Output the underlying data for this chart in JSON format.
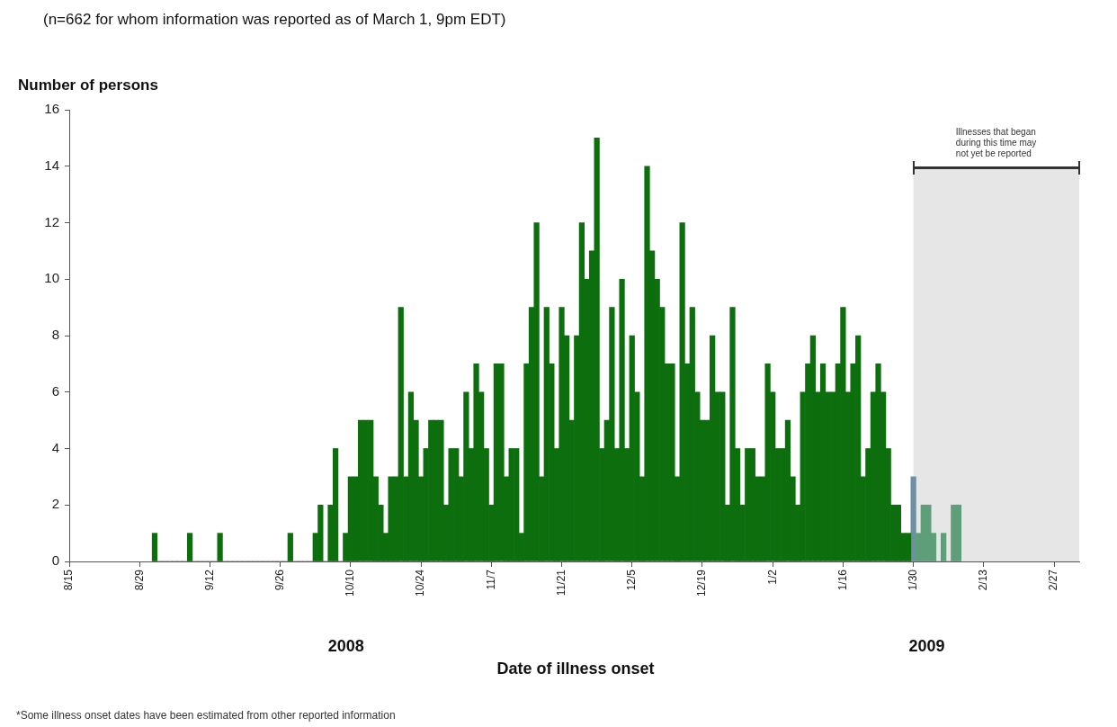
{
  "chart_data": {
    "type": "bar",
    "title": "(n=662 for whom information was reported as of March 1, 9pm EDT)",
    "ylabel": "Number of persons",
    "xlabel": "Date of illness onset",
    "series": [
      {
        "color": "#0d6e0d",
        "x": [
          "2008-09-01",
          "2008-09-02",
          "2008-09-03",
          "2008-09-04",
          "2008-09-05",
          "2008-09-06",
          "2008-09-07",
          "2008-09-08",
          "2008-09-09",
          "2008-09-10",
          "2008-09-11",
          "2008-09-12",
          "2008-09-13",
          "2008-09-14",
          "2008-09-15",
          "2008-09-16",
          "2008-09-17",
          "2008-09-18",
          "2008-09-19",
          "2008-09-20",
          "2008-09-21",
          "2008-09-22",
          "2008-09-23",
          "2008-09-24",
          "2008-09-25",
          "2008-09-26",
          "2008-09-27",
          "2008-09-28",
          "2008-09-29",
          "2008-09-30",
          "2008-10-01",
          "2008-10-02",
          "2008-10-03",
          "2008-10-04",
          "2008-10-05",
          "2008-10-06",
          "2008-10-07",
          "2008-10-08",
          "2008-10-09",
          "2008-10-10",
          "2008-10-11",
          "2008-10-12",
          "2008-10-13",
          "2008-10-14",
          "2008-10-15",
          "2008-10-16",
          "2008-10-17",
          "2008-10-18",
          "2008-10-19",
          "2008-10-20",
          "2008-10-21",
          "2008-10-22",
          "2008-10-23",
          "2008-10-24",
          "2008-10-25",
          "2008-10-26",
          "2008-10-27",
          "2008-10-28",
          "2008-10-29",
          "2008-10-30",
          "2008-10-31",
          "2008-11-01",
          "2008-11-02",
          "2008-11-03",
          "2008-11-04",
          "2008-11-05",
          "2008-11-06",
          "2008-11-07",
          "2008-11-08",
          "2008-11-09",
          "2008-11-10",
          "2008-11-11",
          "2008-11-12",
          "2008-11-13",
          "2008-11-14",
          "2008-11-15",
          "2008-11-16",
          "2008-11-17",
          "2008-11-18",
          "2008-11-19",
          "2008-11-20",
          "2008-11-21",
          "2008-11-22",
          "2008-11-23",
          "2008-11-24",
          "2008-11-25",
          "2008-11-26",
          "2008-11-27",
          "2008-11-28",
          "2008-11-29",
          "2008-11-30",
          "2008-12-01",
          "2008-12-02",
          "2008-12-03",
          "2008-12-04",
          "2008-12-05",
          "2008-12-06",
          "2008-12-07",
          "2008-12-08",
          "2008-12-09",
          "2008-12-10",
          "2008-12-11",
          "2008-12-12",
          "2008-12-13",
          "2008-12-14",
          "2008-12-15",
          "2008-12-16",
          "2008-12-17",
          "2008-12-18",
          "2008-12-19",
          "2008-12-20",
          "2008-12-21",
          "2008-12-22",
          "2008-12-23",
          "2008-12-24",
          "2008-12-25",
          "2008-12-26",
          "2008-12-27",
          "2008-12-28",
          "2008-12-29",
          "2008-12-30",
          "2008-12-31",
          "2009-01-01",
          "2009-01-02",
          "2009-01-03",
          "2009-01-04",
          "2009-01-05",
          "2009-01-06",
          "2009-01-07",
          "2009-01-08",
          "2009-01-09",
          "2009-01-10",
          "2009-01-11",
          "2009-01-12",
          "2009-01-13",
          "2009-01-14",
          "2009-01-15",
          "2009-01-16",
          "2009-01-17",
          "2009-01-18",
          "2009-01-19",
          "2009-01-20",
          "2009-01-21",
          "2009-01-22",
          "2009-01-23",
          "2009-01-24",
          "2009-01-25",
          "2009-01-26",
          "2009-01-27",
          "2009-01-28",
          "2009-01-29"
        ],
        "values": [
          1,
          0,
          0,
          0,
          0,
          0,
          0,
          1,
          0,
          0,
          0,
          0,
          0,
          1,
          0,
          0,
          0,
          0,
          0,
          0,
          0,
          0,
          0,
          0,
          0,
          0,
          0,
          1,
          0,
          0,
          0,
          0,
          1,
          2,
          0,
          2,
          4,
          0,
          1,
          3,
          3,
          5,
          5,
          5,
          3,
          2,
          1,
          3,
          3,
          9,
          3,
          6,
          5,
          3,
          4,
          5,
          5,
          5,
          2,
          4,
          4,
          3,
          6,
          4,
          7,
          6,
          4,
          2,
          7,
          7,
          3,
          4,
          4,
          1,
          7,
          9,
          12,
          3,
          9,
          7,
          4,
          9,
          8,
          5,
          8,
          12,
          10,
          11,
          15,
          4,
          5,
          9,
          4,
          10,
          4,
          8,
          6,
          3,
          14,
          11,
          10,
          9,
          7,
          7,
          3,
          12,
          7,
          9,
          6,
          5,
          5,
          8,
          6,
          6,
          2,
          9,
          4,
          2,
          4,
          4,
          3,
          3,
          7,
          6,
          4,
          4,
          5,
          3,
          2,
          6,
          7,
          8,
          6,
          7,
          6,
          6,
          7,
          9,
          6,
          7,
          8,
          3,
          4,
          6,
          7,
          6,
          4,
          2,
          2,
          1,
          1
        ]
      },
      {
        "colors": [
          "#6f8fa5",
          "#5e9e78",
          "#5e9e78",
          "#5e9e78",
          "#5e9e78",
          "#5e9e78",
          "#5e9e78",
          "#5e9e78",
          "#5e9e78",
          "#5e9e78"
        ],
        "x": [
          "2009-01-30",
          "2009-01-31",
          "2009-02-01",
          "2009-02-02",
          "2009-02-03",
          "2009-02-04",
          "2009-02-05",
          "2009-02-06",
          "2009-02-07",
          "2009-02-08"
        ],
        "values": [
          3,
          1,
          2,
          2,
          1,
          0,
          1,
          0,
          2,
          2
        ]
      }
    ],
    "xlim": [
      "2008-08-15",
      "2009-03-04"
    ],
    "xticks": [
      {
        "value": "2008-08-15",
        "label": "8/15"
      },
      {
        "value": "2008-08-29",
        "label": "8/29"
      },
      {
        "value": "2008-09-12",
        "label": "9/12"
      },
      {
        "value": "2008-09-26",
        "label": "9/26"
      },
      {
        "value": "2008-10-10",
        "label": "10/10"
      },
      {
        "value": "2008-10-24",
        "label": "10/24"
      },
      {
        "value": "2008-11-07",
        "label": "11/7"
      },
      {
        "value": "2008-11-21",
        "label": "11/21"
      },
      {
        "value": "2008-12-05",
        "label": "12/5"
      },
      {
        "value": "2008-12-19",
        "label": "12/19"
      },
      {
        "value": "2009-01-02",
        "label": "1/2"
      },
      {
        "value": "2009-01-16",
        "label": "1/16"
      },
      {
        "value": "2009-01-30",
        "label": "1/30"
      },
      {
        "value": "2009-02-13",
        "label": "2/13"
      },
      {
        "value": "2009-02-27",
        "label": "2/27"
      }
    ],
    "ylim": [
      0,
      16
    ],
    "yticks": [
      0,
      2,
      4,
      6,
      8,
      10,
      12,
      14,
      16
    ],
    "bands": [
      {
        "axis": "x",
        "from": "2009-01-30",
        "to": "2009-03-04",
        "label": "Illnesses that began during this time may not yet be reported",
        "color": "#e6e6e6"
      }
    ],
    "annotations": [
      "2008",
      "2009",
      "*Some illness onset dates have been estimated from other reported information"
    ]
  }
}
